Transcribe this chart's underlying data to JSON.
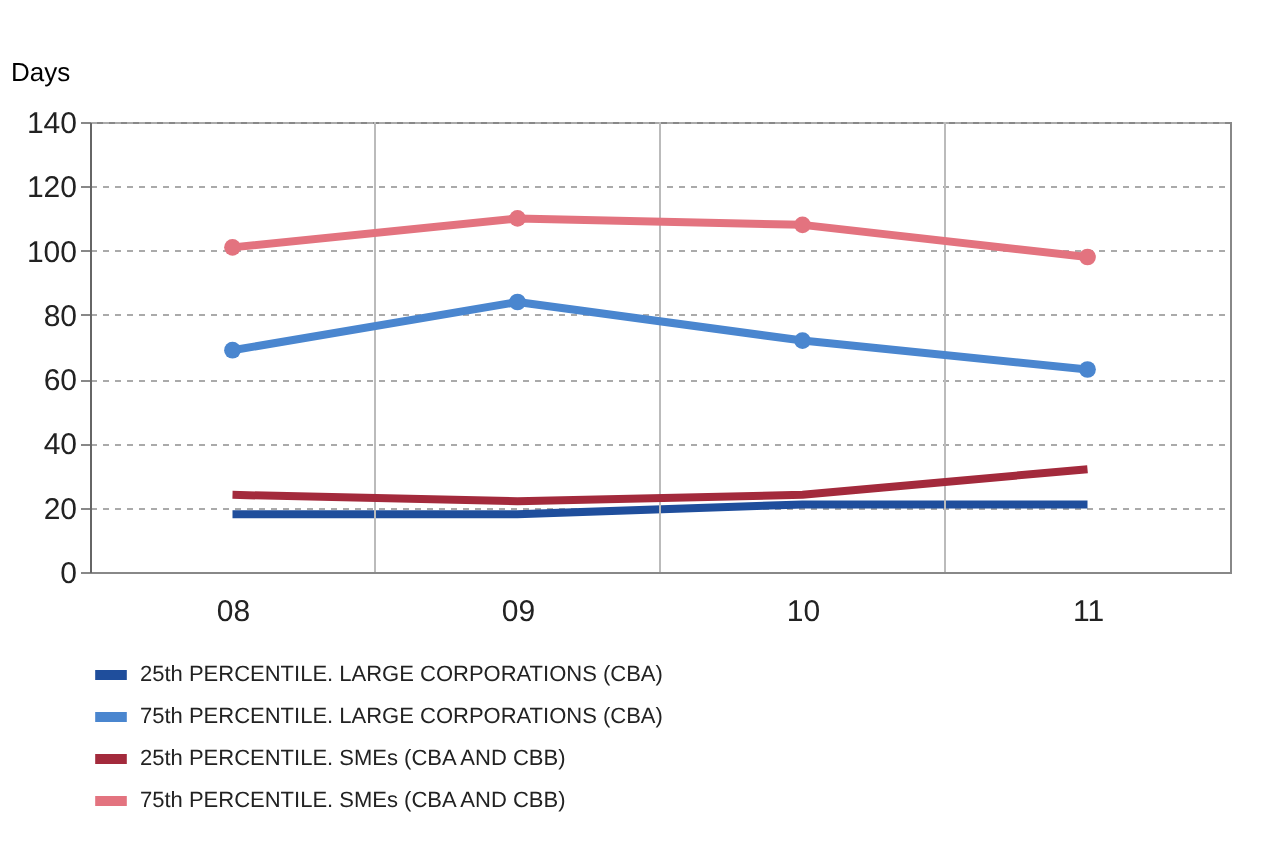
{
  "chart_data": {
    "type": "line",
    "ylabel": "Days",
    "categories": [
      "08",
      "09",
      "10",
      "11"
    ],
    "ylim": [
      0,
      140
    ],
    "yticks": [
      0,
      20,
      40,
      60,
      80,
      100,
      120,
      140
    ],
    "grid": true,
    "legend": "bottom",
    "series": [
      {
        "name": "25th PERCENTILE. LARGE CORPORATIONS (CBA)",
        "color": "#1f4e9c",
        "marker": "none",
        "values": [
          18,
          18,
          21,
          21
        ]
      },
      {
        "name": "75th PERCENTILE. LARGE CORPORATIONS (CBA)",
        "color": "#4a86cf",
        "marker": "circle",
        "values": [
          69,
          84,
          72,
          63
        ]
      },
      {
        "name": "25th PERCENTILE. SMEs (CBA AND CBB)",
        "color": "#a32a3c",
        "marker": "none",
        "values": [
          24,
          22,
          24,
          32
        ]
      },
      {
        "name": "75th PERCENTILE. SMEs (CBA AND CBB)",
        "color": "#e3737f",
        "marker": "circle",
        "values": [
          101,
          110,
          108,
          98
        ]
      }
    ]
  }
}
